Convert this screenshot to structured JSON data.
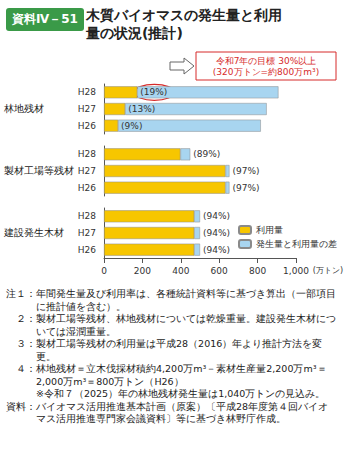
{
  "header": "資料Ⅳ－51",
  "chart_data": {
    "type": "bar",
    "orientation": "horizontal",
    "stacked": true,
    "title": "木質バイオマスの発生量と利用量の状況(推計)",
    "category_groups": [
      "林地残材",
      "林地残材",
      "林地残材",
      "製材工場等残材",
      "製材工場等残材",
      "製材工場等残材",
      "建設発生木材",
      "建設発生木材",
      "建設発生木材"
    ],
    "categories": [
      "H28",
      "H27",
      "H26",
      "H28",
      "H27",
      "H26",
      "H28",
      "H27",
      "H26"
    ],
    "series": [
      {
        "name": "利用量",
        "color": "#f7c600",
        "values": [
          170,
          108,
          72,
          390,
          620,
          620,
          470,
          470,
          470
        ]
      },
      {
        "name": "発生量と利用量の差",
        "color": "#a8d5f0",
        "values": [
          720,
          722,
          728,
          50,
          20,
          20,
          30,
          30,
          30
        ]
      }
    ],
    "rate_labels": [
      "(19%)",
      "(13%)",
      "(9%)",
      "(89%)",
      "(97%)",
      "(97%)",
      "(94%)",
      "(94%)",
      "(94%)"
    ],
    "annotation": [
      "令和7年の目標 30%以上",
      "(320万トン=約800万m³)"
    ],
    "xlabel": "(万トン)",
    "xlim": [
      0,
      1000
    ],
    "xticks": [
      0,
      200,
      400,
      600,
      800,
      {
        "value": 1000,
        "label": "1,000"
      }
    ],
    "grid": false,
    "legend": "lower right",
    "data_labels": false
  },
  "notes": [
    {
      "label": "注１：",
      "text": "年間発生量及び利用率は、各種統計資料等に基づき算出（一部項目に推計値を含む）。"
    },
    {
      "label": "　２：",
      "text": "製材工場等残材、林地残材については乾燥重量。建設発生木材については湿潤重量。"
    },
    {
      "label": "　３：",
      "text": "製材工場等残材の利用量は平成28（2016）年より推計方法を変更。"
    },
    {
      "label": "　４：",
      "text": "林地残材＝立木伐採材積約4,200万m³－素材生産量2,200万m³＝2,000万m³＝800万トン（H26）"
    },
    {
      "label": "　　　",
      "text": "※令和７（2025）年の林地残材発生量は1,040万トンの見込み。"
    }
  ],
  "source": {
    "label": "資料：",
    "text": "バイオマス活用推進基本計画（原案）〔平成28年度第４回バイオマス活用推進専門家会議資料〕等に基づき林野庁作成。"
  }
}
